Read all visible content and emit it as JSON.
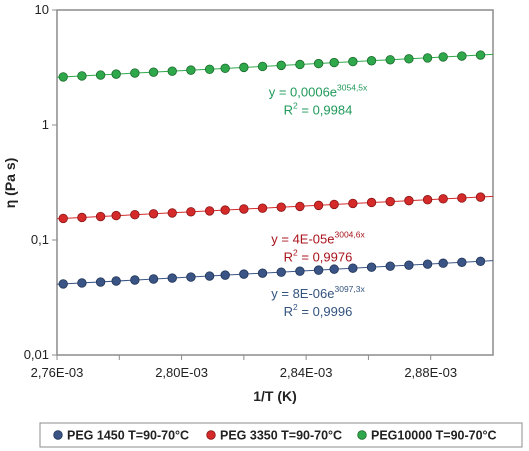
{
  "chart_data": {
    "type": "scatter",
    "title": "",
    "xlabel": "1/T (K)",
    "ylabel": "η (Pa s)",
    "x_scale": "linear",
    "y_scale": "log",
    "xlim": [
      0.00276,
      0.0029
    ],
    "ylim": [
      0.01,
      10
    ],
    "x_ticks": [
      0.00276,
      0.0028,
      0.00284,
      0.00288
    ],
    "x_tick_labels": [
      "2,76E-03",
      "2,80E-03",
      "2,84E-03",
      "2,88E-03"
    ],
    "y_ticks": [
      0.01,
      0.1,
      1,
      10
    ],
    "y_tick_labels": [
      "0,01",
      "0,1",
      "1",
      "10"
    ],
    "grid": false,
    "legend_position": "bottom",
    "x": [
      0.002762,
      0.002768,
      0.002774,
      0.002779,
      0.002785,
      0.002791,
      0.002797,
      0.002803,
      0.002809,
      0.002814,
      0.00282,
      0.002826,
      0.002832,
      0.002838,
      0.002844,
      0.002849,
      0.002855,
      0.002861,
      0.002867,
      0.002873,
      0.002879,
      0.002884,
      0.00289,
      0.002896
    ],
    "series": [
      {
        "name": "PEG 1450 T=90-70°C",
        "color": "#3a5585",
        "edge_color": "#1f3458",
        "values": [
          0.0415,
          0.0423,
          0.0431,
          0.044,
          0.0449,
          0.0458,
          0.0467,
          0.0476,
          0.0486,
          0.0495,
          0.0505,
          0.0515,
          0.0525,
          0.0536,
          0.0547,
          0.0558,
          0.0569,
          0.058,
          0.0592,
          0.0604,
          0.0616,
          0.0628,
          0.064,
          0.0653
        ],
        "trend_label": "y = 8E-06e",
        "trend_exp": "3097,3x",
        "r2_label": "R",
        "r2_exp": "2",
        "r2_value": " = 0,9996",
        "label_color": "#33537f"
      },
      {
        "name": "PEG 3350 T=90-70°C",
        "color": "#d42a2a",
        "edge_color": "#8a1414",
        "values": [
          0.154,
          0.157,
          0.16,
          0.163,
          0.166,
          0.169,
          0.172,
          0.176,
          0.179,
          0.182,
          0.186,
          0.189,
          0.193,
          0.196,
          0.2,
          0.204,
          0.208,
          0.212,
          0.216,
          0.22,
          0.224,
          0.228,
          0.232,
          0.236
        ],
        "trend_label": "y = 4E-05e",
        "trend_exp": "3004,6x",
        "r2_label": "R",
        "r2_exp": "2",
        "r2_value": " = 0,9976",
        "label_color": "#a8141c"
      },
      {
        "name": "PEG10000 T=90-70°C",
        "color": "#2ea84a",
        "edge_color": "#1a6a2c",
        "values": [
          2.62,
          2.67,
          2.72,
          2.77,
          2.83,
          2.88,
          2.94,
          3.0,
          3.05,
          3.11,
          3.17,
          3.23,
          3.3,
          3.36,
          3.42,
          3.49,
          3.56,
          3.62,
          3.69,
          3.76,
          3.83,
          3.91,
          3.98,
          4.06
        ],
        "trend_label": "y = 0,0006e",
        "trend_exp": "3054,5x",
        "r2_label": "R",
        "r2_exp": "2",
        "r2_value": " = 0,9984",
        "label_color": "#1f9a5a"
      }
    ]
  }
}
